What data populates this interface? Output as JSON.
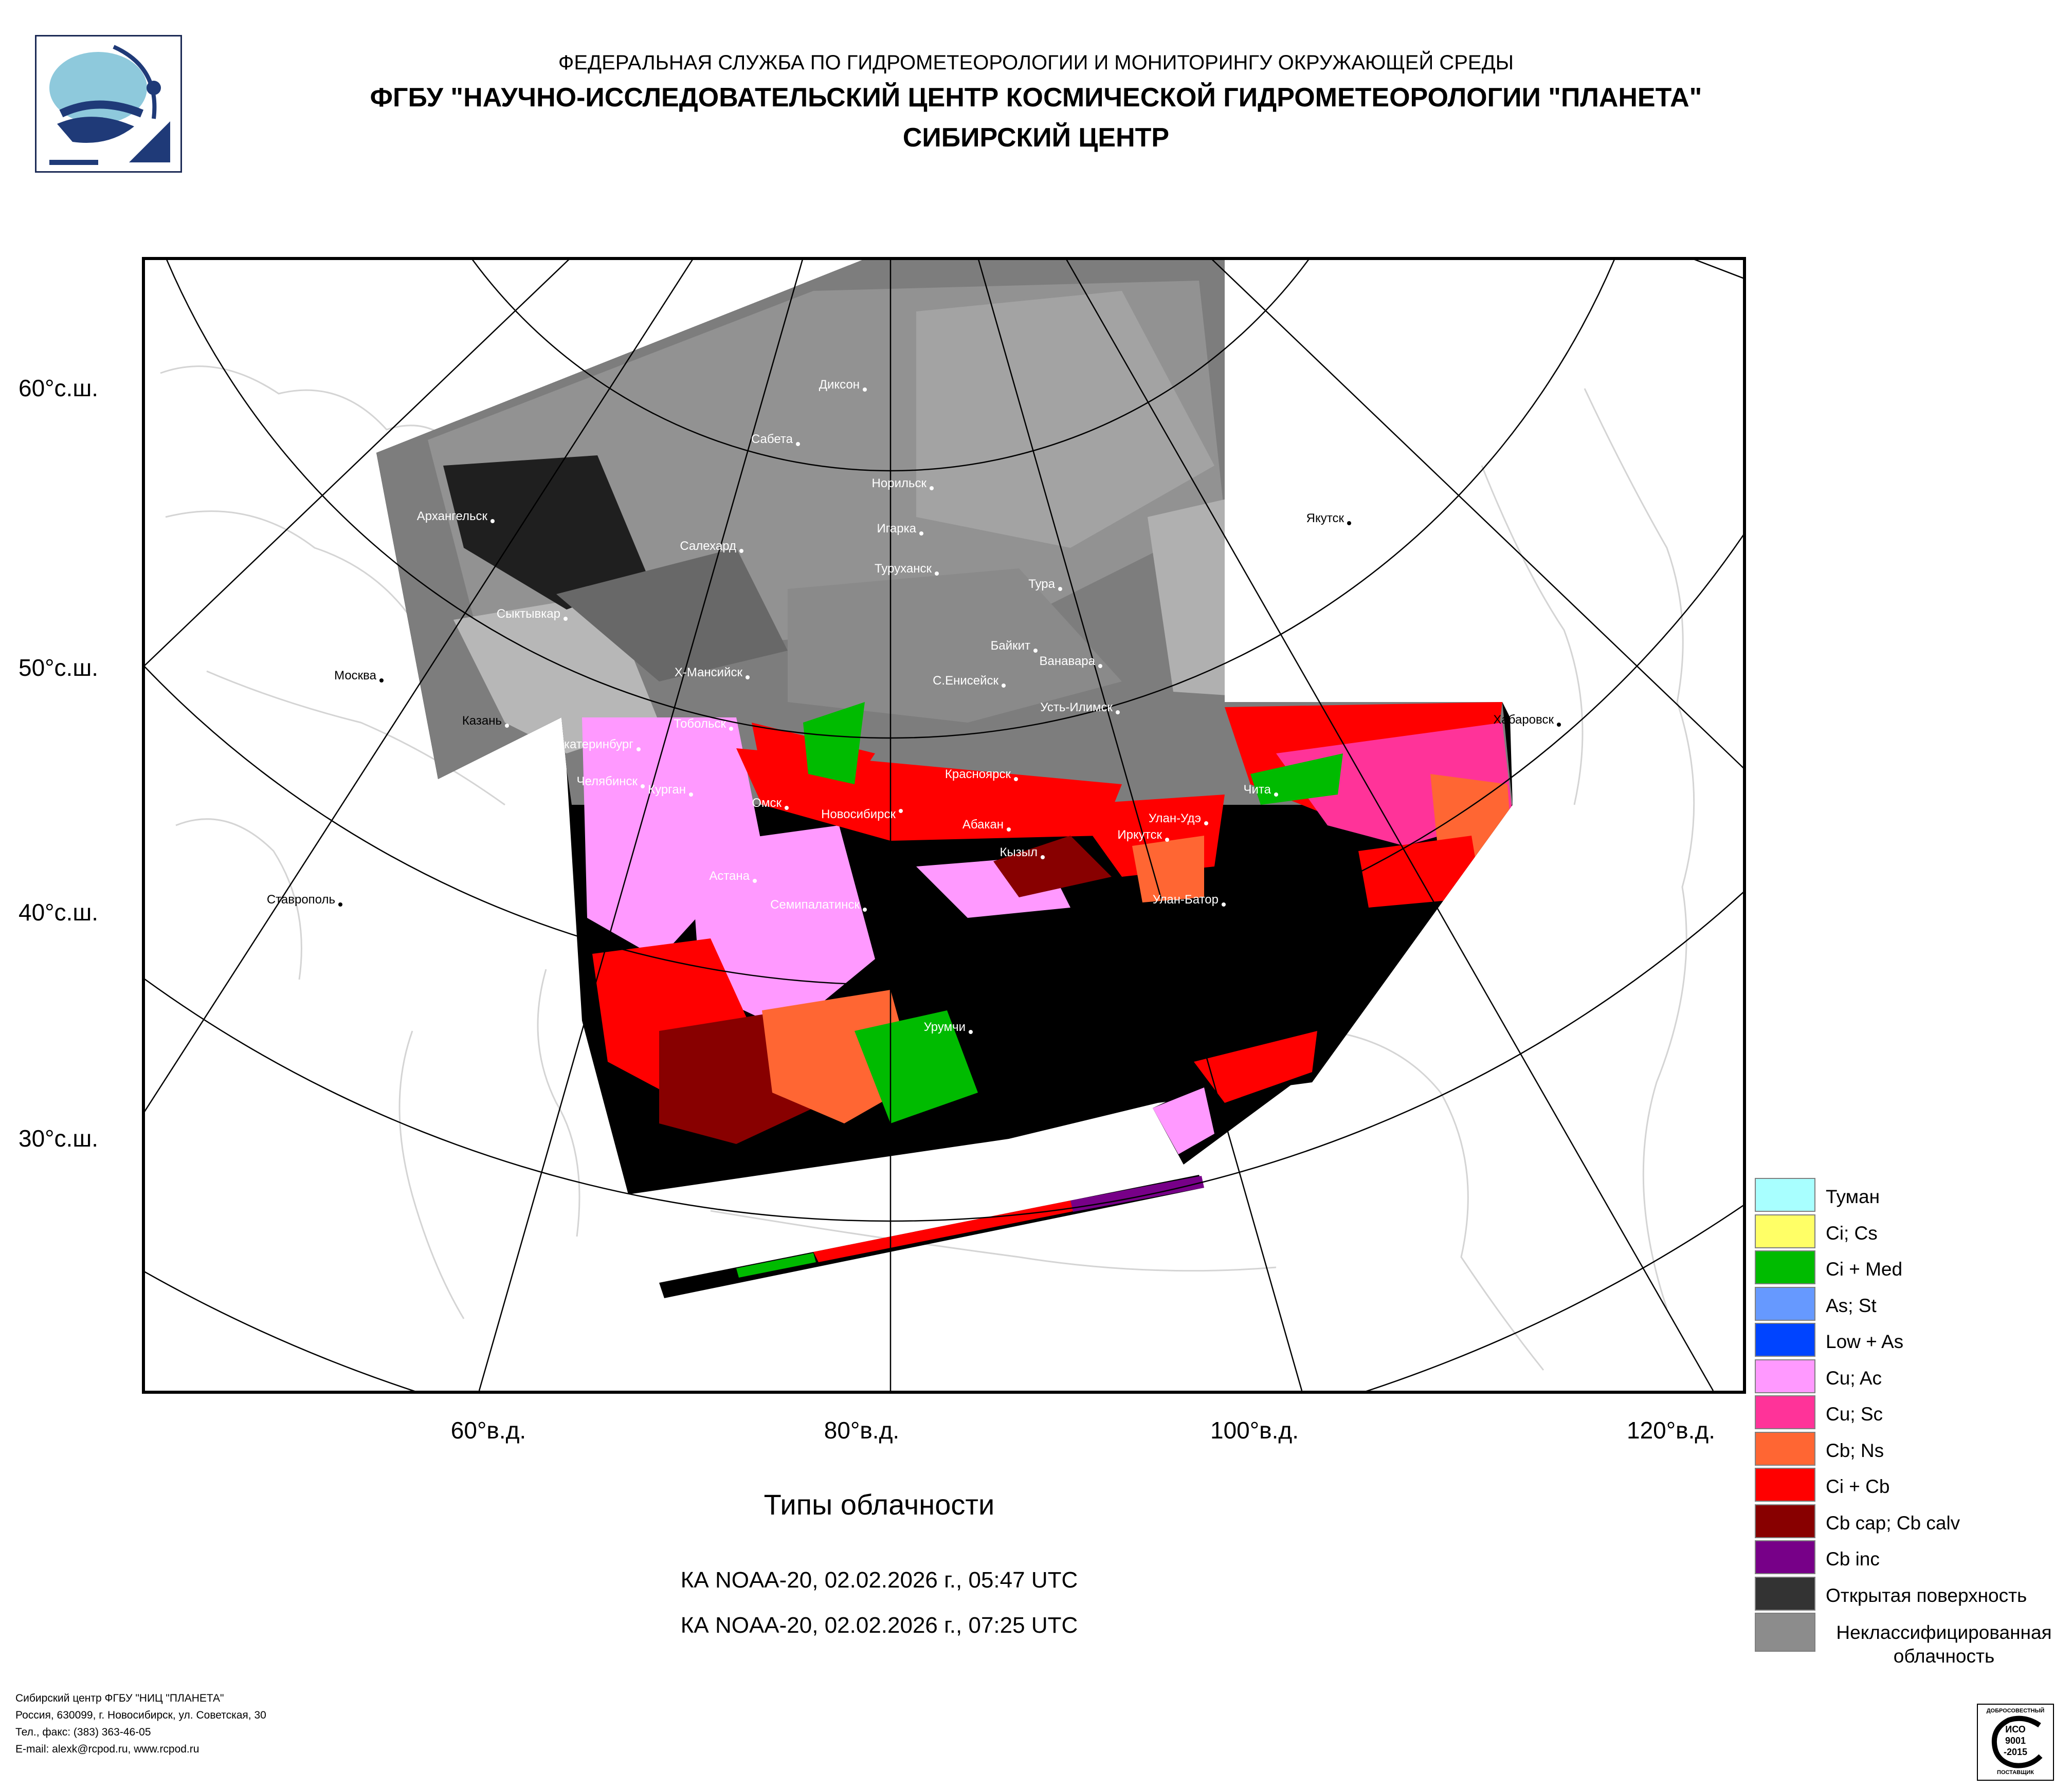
{
  "header": {
    "line1": "ФЕДЕРАЛЬНАЯ СЛУЖБА ПО ГИДРОМЕТЕОРОЛОГИИ И МОНИТОРИНГУ ОКРУЖАЮЩЕЙ СРЕДЫ",
    "line2": "ФГБУ \"НАУЧНО-ИССЛЕДОВАТЕЛЬСКИЙ ЦЕНТР КОСМИЧЕСКОЙ ГИДРОМЕТЕОРОЛОГИИ \"ПЛАНЕТА\"",
    "line3": "СИБИРСКИЙ ЦЕНТР"
  },
  "logo_icon": "planeta-logo-icon",
  "map": {
    "lat_labels": [
      "60°с.ш.",
      "50°с.ш.",
      "40°с.ш.",
      "30°с.ш."
    ],
    "lon_labels": [
      "60°в.д.",
      "80°в.д.",
      "100°в.д.",
      "120°в.д."
    ],
    "cities": [
      {
        "name": "Диксон"
      },
      {
        "name": "Сабета"
      },
      {
        "name": "Норильск"
      },
      {
        "name": "Архангельск"
      },
      {
        "name": "Игарка"
      },
      {
        "name": "Салехард"
      },
      {
        "name": "Якутск"
      },
      {
        "name": "Туруханск"
      },
      {
        "name": "Тура"
      },
      {
        "name": "Сыктывкар"
      },
      {
        "name": "Байкит"
      },
      {
        "name": "Ванавара"
      },
      {
        "name": "Москва"
      },
      {
        "name": "Х-Мансийск"
      },
      {
        "name": "С.Енисейск"
      },
      {
        "name": "Усть-Илимск"
      },
      {
        "name": "Казань"
      },
      {
        "name": "Тобольск"
      },
      {
        "name": "Хабаровск"
      },
      {
        "name": "Екатеринбург"
      },
      {
        "name": "Красноярск"
      },
      {
        "name": "Челябинск"
      },
      {
        "name": "Чита"
      },
      {
        "name": "Курган"
      },
      {
        "name": "Омск"
      },
      {
        "name": "Новосибирск"
      },
      {
        "name": "Улан-Удэ"
      },
      {
        "name": "Абакан"
      },
      {
        "name": "Иркутск"
      },
      {
        "name": "Кызыл"
      },
      {
        "name": "Астана"
      },
      {
        "name": "Ставрополь"
      },
      {
        "name": "Улан-Батор"
      },
      {
        "name": "Семипалатинск"
      },
      {
        "name": "Урумчи"
      }
    ]
  },
  "title": "Типы облачности",
  "passes": [
    "КА NOAA-20, 02.02.2026 г., 05:47 UTC",
    "КА NOAA-20, 02.02.2026 г., 07:25 UTC"
  ],
  "legend": [
    {
      "label": "Туман",
      "color": "#a8ffff"
    },
    {
      "label": "Ci; Cs",
      "color": "#ffff66"
    },
    {
      "label": "Ci + Med",
      "color": "#00bb00"
    },
    {
      "label": "As; St",
      "color": "#6699ff"
    },
    {
      "label": "Low + As",
      "color": "#0044ff"
    },
    {
      "label": "Cu; Ac",
      "color": "#ff99ff"
    },
    {
      "label": "Cu; Sc",
      "color": "#ff3399"
    },
    {
      "label": "Cb; Ns",
      "color": "#ff6633"
    },
    {
      "label": "Ci + Cb",
      "color": "#ff0000"
    },
    {
      "label": "Cb cap; Cb calv",
      "color": "#880000"
    },
    {
      "label": "Cb inc",
      "color": "#770088"
    },
    {
      "label": "Открытая поверхность",
      "color": "#333333"
    },
    {
      "label": "Неклассифицированная облачность",
      "color": "#8c8c8c"
    }
  ],
  "footer": [
    "Сибирский центр ФГБУ \"НИЦ \"ПЛАНЕТА\"",
    "Россия, 630099, г. Новосибирск, ул. Советская, 30",
    "Тел., факс: (383) 363-46-05",
    "E-mail: alexk@rcpod.ru, www.rcpod.ru"
  ],
  "cert": {
    "icon": "iso-certificate-icon",
    "top": "ДОБРОСОВЕСТНЫЙ",
    "l1": "ИСО",
    "l2": "9001",
    "l3": "-2015",
    "bottom": "ПОСТАВЩИК"
  }
}
